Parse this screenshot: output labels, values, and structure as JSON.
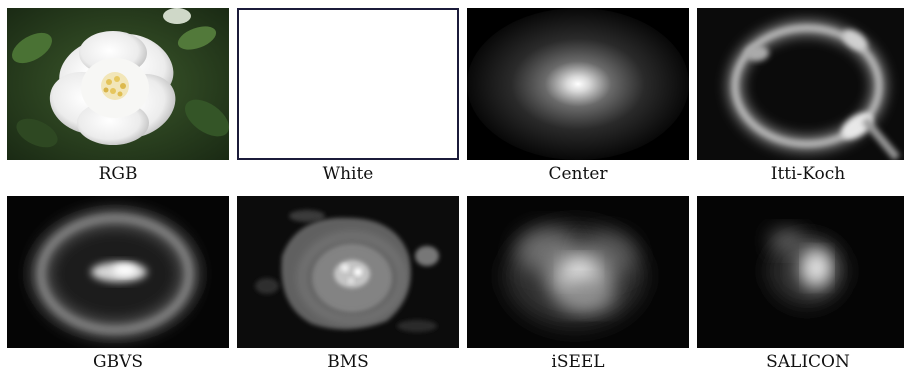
{
  "panels": [
    {
      "label": "RGB"
    },
    {
      "label": "White"
    },
    {
      "label": "Center"
    },
    {
      "label": "Itti-Koch"
    },
    {
      "label": "GBVS"
    },
    {
      "label": "BMS"
    },
    {
      "label": "iSEEL"
    },
    {
      "label": "SALICON"
    }
  ]
}
